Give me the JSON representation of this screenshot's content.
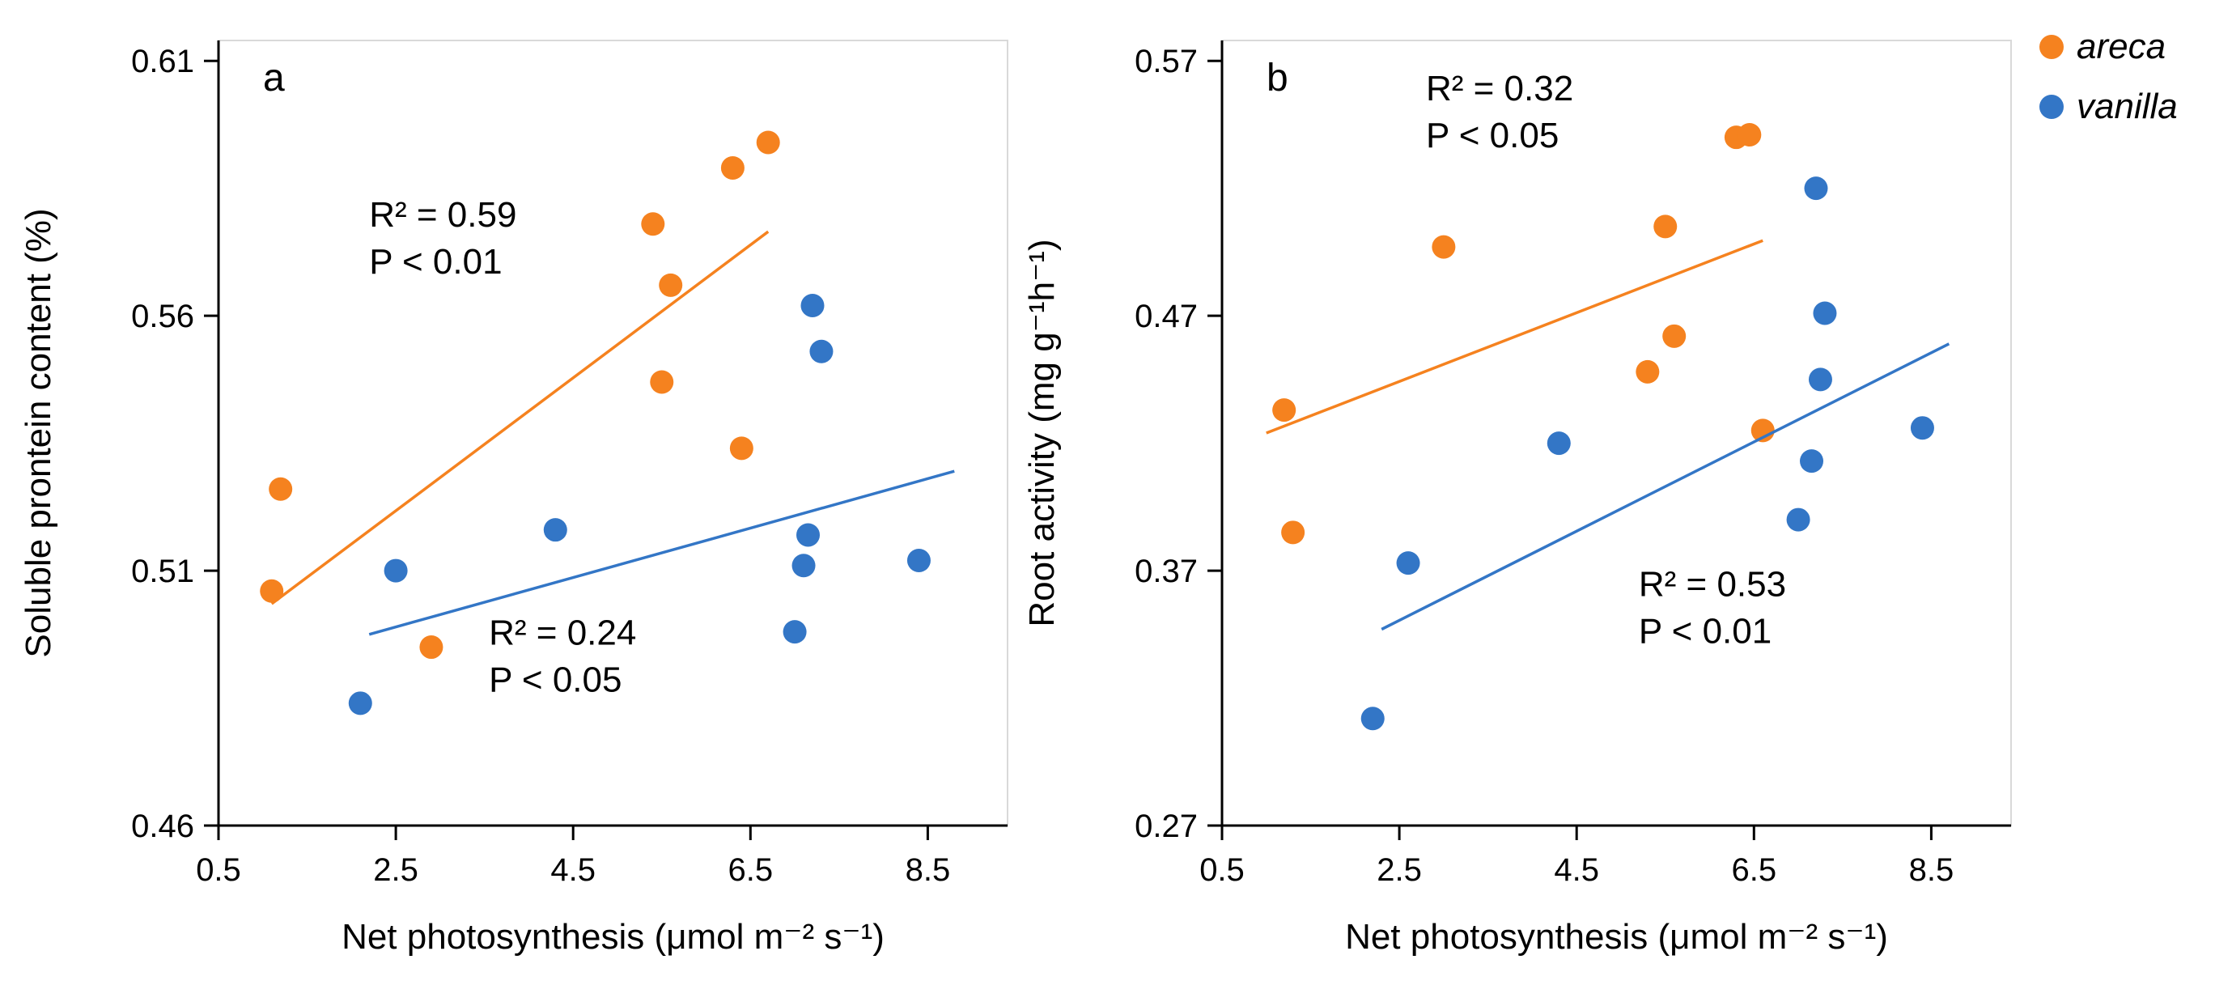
{
  "figure": {
    "background": "#ffffff",
    "text_color": "#000000",
    "axis_color": "#000000",
    "plot_border_color": "#d9d9d9"
  },
  "legend": {
    "position": "top-right",
    "items": [
      {
        "label": "areca",
        "color": "#F5821F"
      },
      {
        "label": "vanilla",
        "color": "#3376C6"
      }
    ]
  },
  "chart_data": [
    {
      "type": "scatter",
      "panel_label": "a",
      "xlabel": "Net photosynthesis (μmol m⁻² s⁻¹)",
      "ylabel": "Soluble prontein content (%)",
      "x_domain": [
        0.5,
        9.4
      ],
      "y_domain": [
        0.46,
        0.614
      ],
      "x_ticks": [
        "0.5",
        "2.5",
        "4.5",
        "6.5",
        "8.5"
      ],
      "y_ticks": [
        "0.46",
        "0.51",
        "0.56",
        "0.61"
      ],
      "grid": false,
      "series": [
        {
          "name": "areca",
          "color": "#F5821F",
          "points": [
            [
              1.2,
              0.526
            ],
            [
              1.1,
              0.506
            ],
            [
              2.9,
              0.495
            ],
            [
              5.4,
              0.578
            ],
            [
              5.6,
              0.566
            ],
            [
              5.5,
              0.547
            ],
            [
              6.3,
              0.589
            ],
            [
              6.7,
              0.594
            ],
            [
              6.4,
              0.534
            ]
          ],
          "trend": [
            [
              1.1,
              0.5035
            ],
            [
              6.7,
              0.5765
            ]
          ],
          "annotation": {
            "x": 2.2,
            "y": 0.5775,
            "lines": [
              "R² = 0.59",
              "P < 0.01"
            ]
          }
        },
        {
          "name": "vanilla",
          "color": "#3376C6",
          "points": [
            [
              2.1,
              0.484
            ],
            [
              2.5,
              0.51
            ],
            [
              4.3,
              0.518
            ],
            [
              7.2,
              0.562
            ],
            [
              7.3,
              0.553
            ],
            [
              7.15,
              0.517
            ],
            [
              7.1,
              0.511
            ],
            [
              7.0,
              0.498
            ],
            [
              8.4,
              0.512
            ]
          ],
          "trend": [
            [
              2.2,
              0.4975
            ],
            [
              8.8,
              0.5295
            ]
          ],
          "annotation": {
            "x": 3.55,
            "y": 0.4955,
            "lines": [
              "R² = 0.24",
              "P < 0.05"
            ]
          }
        }
      ]
    },
    {
      "type": "scatter",
      "panel_label": "b",
      "xlabel": "Net photosynthesis (μmol m⁻² s⁻¹)",
      "ylabel": "Root activity (mg g⁻¹h⁻¹)",
      "x_domain": [
        0.5,
        9.4
      ],
      "y_domain": [
        0.27,
        0.578
      ],
      "x_ticks": [
        "0.5",
        "2.5",
        "4.5",
        "6.5",
        "8.5"
      ],
      "y_ticks": [
        "0.27",
        "0.37",
        "0.47",
        "0.57"
      ],
      "grid": false,
      "series": [
        {
          "name": "areca",
          "color": "#F5821F",
          "points": [
            [
              1.2,
              0.433
            ],
            [
              1.3,
              0.385
            ],
            [
              3.0,
              0.497
            ],
            [
              5.3,
              0.448
            ],
            [
              5.6,
              0.462
            ],
            [
              5.5,
              0.505
            ],
            [
              6.3,
              0.54
            ],
            [
              6.45,
              0.541
            ],
            [
              6.6,
              0.425
            ]
          ],
          "trend": [
            [
              1.0,
              0.424
            ],
            [
              6.6,
              0.4995
            ]
          ],
          "annotation": {
            "x": 2.8,
            "y": 0.5545,
            "lines": [
              "R² = 0.32",
              "P < 0.05"
            ]
          }
        },
        {
          "name": "vanilla",
          "color": "#3376C6",
          "points": [
            [
              2.2,
              0.312
            ],
            [
              2.6,
              0.373
            ],
            [
              4.3,
              0.42
            ],
            [
              7.2,
              0.52
            ],
            [
              7.3,
              0.471
            ],
            [
              7.25,
              0.445
            ],
            [
              7.15,
              0.413
            ],
            [
              7.0,
              0.39
            ],
            [
              8.4,
              0.426
            ]
          ],
          "trend": [
            [
              2.3,
              0.347
            ],
            [
              8.7,
              0.459
            ]
          ],
          "annotation": {
            "x": 5.2,
            "y": 0.36,
            "lines": [
              "R² = 0.53",
              "P < 0.01"
            ]
          }
        }
      ]
    }
  ]
}
